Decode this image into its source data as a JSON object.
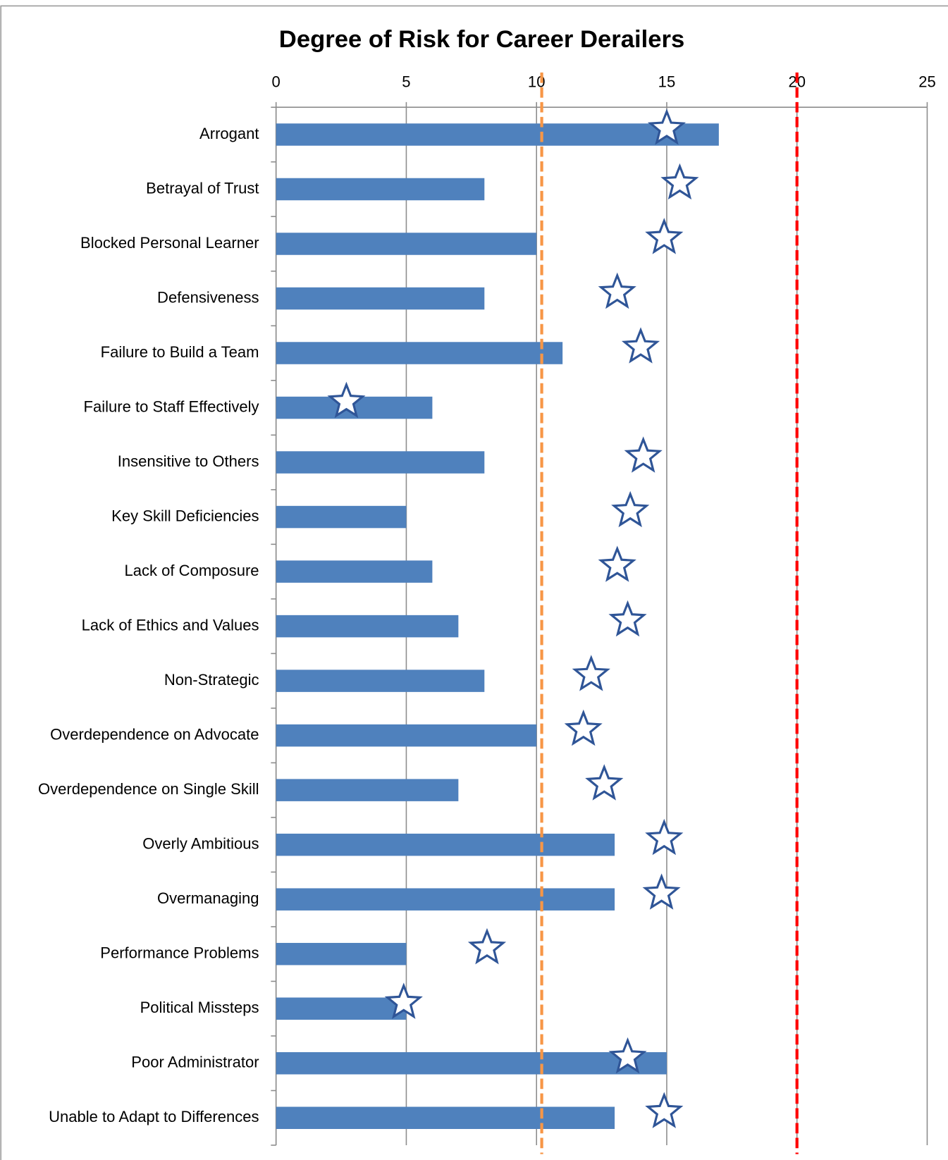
{
  "chart_data": {
    "type": "bar",
    "orientation": "horizontal",
    "title": "Degree of Risk for Career Derailers",
    "categories": [
      "Arrogant",
      "Betrayal of Trust",
      "Blocked Personal Learner",
      "Defensiveness",
      "Failure to Build a Team",
      "Failure to Staff Effectively",
      "Insensitive to Others",
      "Key Skill Deficiencies",
      "Lack of Composure",
      "Lack of Ethics and Values",
      "Non-Strategic",
      "Overdependence on Advocate",
      "Overdependence on Single Skill",
      "Overly Ambitious",
      "Overmanaging",
      "Performance Problems",
      "Political Missteps",
      "Poor Administrator",
      "Unable to Adapt to Differences"
    ],
    "series": [
      {
        "type": "bar",
        "color": "#4f81bd",
        "values": [
          17,
          8,
          10,
          8,
          11,
          6,
          8,
          5,
          6,
          7,
          8,
          10,
          7,
          13,
          13,
          5,
          5,
          15,
          13
        ]
      },
      {
        "type": "scatter",
        "marker": "star",
        "color": "#2f5597",
        "values": [
          15,
          15.5,
          14.9,
          13.1,
          14.0,
          2.7,
          14.1,
          13.6,
          13.1,
          13.5,
          12.1,
          11.8,
          12.6,
          14.9,
          14.8,
          8.1,
          4.9,
          13.5,
          14.9
        ]
      }
    ],
    "reference_lines": [
      {
        "value": 10.2,
        "color": "#f79646",
        "style": "dashed"
      },
      {
        "value": 20,
        "color": "#ff0000",
        "style": "dashed"
      }
    ],
    "xlim": [
      0,
      25
    ],
    "xticks": [
      0,
      5,
      10,
      15,
      20,
      25
    ],
    "grid": true
  }
}
